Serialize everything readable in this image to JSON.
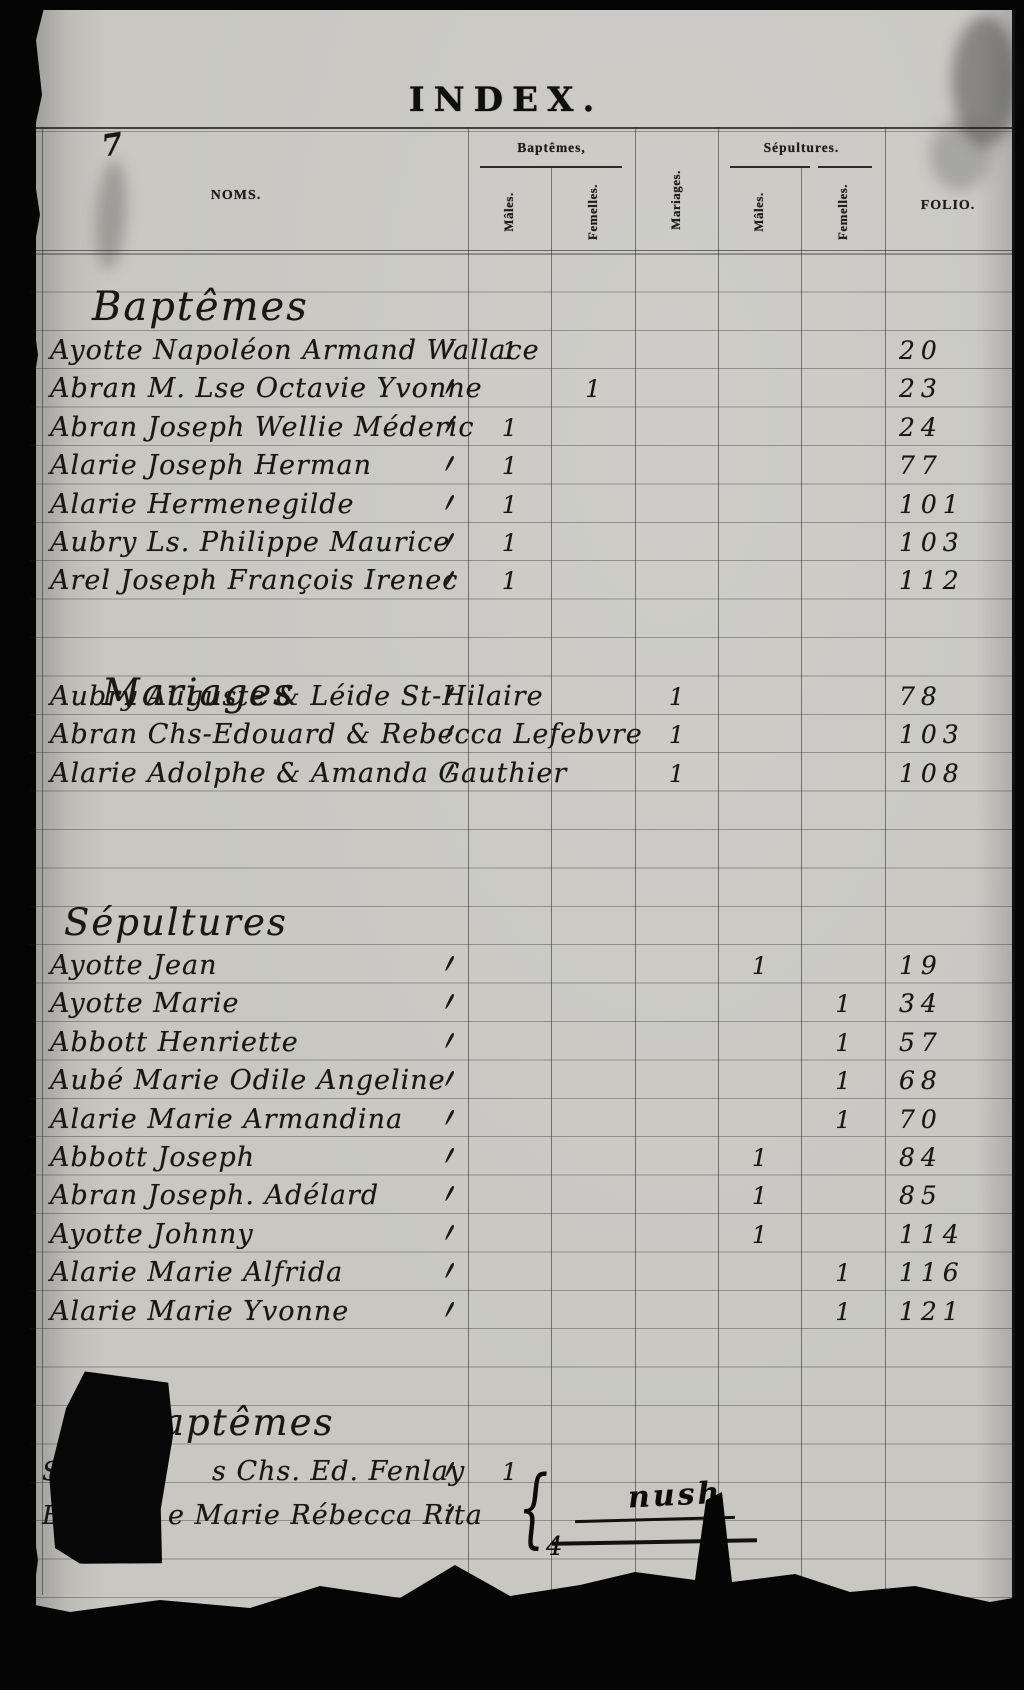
{
  "page": {
    "title": "INDEX.",
    "corner_mark": "7",
    "marks": {
      "scribble": "nush",
      "digit": "4",
      "brace": "{"
    }
  },
  "table": {
    "headers": {
      "noms": "NOMS.",
      "baptemes_group": "Baptêmes,",
      "baptemes_males": "Mâles.",
      "baptemes_femelles": "Femelles.",
      "mariages": "Mariages.",
      "sepultures_group": "Sépultures.",
      "sepultures_males": "Mâles.",
      "sepultures_femelles": "Femelles.",
      "folio": "FOLIO."
    },
    "sections": [
      {
        "heading": "Baptêmes",
        "rows": [
          {
            "name": "Ayotte Napoléon Armand Wallace",
            "bm": "1",
            "bf": "",
            "mar": "",
            "sm": "",
            "sf": "",
            "folio": "20",
            "tick": true
          },
          {
            "name": "Abran M. Lse Octavie Yvonne",
            "bm": "",
            "bf": "1",
            "mar": "",
            "sm": "",
            "sf": "",
            "folio": "23",
            "tick": true
          },
          {
            "name": "Abran Joseph Wellie Méderic",
            "bm": "1",
            "bf": "",
            "mar": "",
            "sm": "",
            "sf": "",
            "folio": "24",
            "tick": true
          },
          {
            "name": "Alarie Joseph Herman",
            "bm": "1",
            "bf": "",
            "mar": "",
            "sm": "",
            "sf": "",
            "folio": "77",
            "tick": true
          },
          {
            "name": "Alarie Hermenegilde",
            "bm": "1",
            "bf": "",
            "mar": "",
            "sm": "",
            "sf": "",
            "folio": "101",
            "tick": true
          },
          {
            "name": "Aubry Ls. Philippe Maurice",
            "bm": "1",
            "bf": "",
            "mar": "",
            "sm": "",
            "sf": "",
            "folio": "103",
            "tick": true
          },
          {
            "name": "Arel Joseph François Irenec",
            "bm": "1",
            "bf": "",
            "mar": "",
            "sm": "",
            "sf": "",
            "folio": "112",
            "tick": true
          }
        ]
      },
      {
        "heading": "Mariages",
        "rows": [
          {
            "name": "Aubry Auguste & Léide St-Hilaire",
            "bm": "",
            "bf": "",
            "mar": "1",
            "sm": "",
            "sf": "",
            "folio": "78",
            "tick": true
          },
          {
            "name": "Abran Chs-Edouard & Rebecca Lefebvre",
            "bm": "",
            "bf": "",
            "mar": "1",
            "sm": "",
            "sf": "",
            "folio": "103",
            "tick": true
          },
          {
            "name": "Alarie Adolphe & Amanda Gauthier",
            "bm": "",
            "bf": "",
            "mar": "1",
            "sm": "",
            "sf": "",
            "folio": "108",
            "tick": true
          }
        ]
      },
      {
        "heading": "Sépultures",
        "rows": [
          {
            "name": "Ayotte Jean",
            "bm": "",
            "bf": "",
            "mar": "",
            "sm": "1",
            "sf": "",
            "folio": "19",
            "tick": true
          },
          {
            "name": "Ayotte Marie",
            "bm": "",
            "bf": "",
            "mar": "",
            "sm": "",
            "sf": "1",
            "folio": "34",
            "tick": true
          },
          {
            "name": "Abbott Henriette",
            "bm": "",
            "bf": "",
            "mar": "",
            "sm": "",
            "sf": "1",
            "folio": "57",
            "tick": true
          },
          {
            "name": "Aubé Marie Odile Angeline",
            "bm": "",
            "bf": "",
            "mar": "",
            "sm": "",
            "sf": "1",
            "folio": "68",
            "tick": true
          },
          {
            "name": "Alarie Marie Armandina",
            "bm": "",
            "bf": "",
            "mar": "",
            "sm": "",
            "sf": "1",
            "folio": "70",
            "tick": true
          },
          {
            "name": "Abbott Joseph",
            "bm": "",
            "bf": "",
            "mar": "",
            "sm": "1",
            "sf": "",
            "folio": "84",
            "tick": true
          },
          {
            "name": "Abran Joseph. Adélard",
            "bm": "",
            "bf": "",
            "mar": "",
            "sm": "1",
            "sf": "",
            "folio": "85",
            "tick": true
          },
          {
            "name": "Ayotte Johnny",
            "bm": "",
            "bf": "",
            "mar": "",
            "sm": "1",
            "sf": "",
            "folio": "114",
            "tick": true
          },
          {
            "name": "Alarie Marie Alfrida",
            "bm": "",
            "bf": "",
            "mar": "",
            "sm": "",
            "sf": "1",
            "folio": "116",
            "tick": true
          },
          {
            "name": "Alarie Marie Yvonne",
            "bm": "",
            "bf": "",
            "mar": "",
            "sm": "",
            "sf": "1",
            "folio": "121",
            "tick": true
          }
        ]
      },
      {
        "heading": "aptêmes",
        "rows": [
          {
            "frag": "S",
            "name": "s Chs. Ed. Fenlay",
            "bm": "1",
            "bf": "",
            "mar": "",
            "sm": "",
            "sf": "",
            "folio": "",
            "tick": true
          },
          {
            "frag": "B",
            "name": "e Marie Rébecca Rita",
            "bm": "",
            "bf": "",
            "mar": "",
            "sm": "",
            "sf": "",
            "folio": "",
            "tick": true
          }
        ]
      }
    ]
  }
}
